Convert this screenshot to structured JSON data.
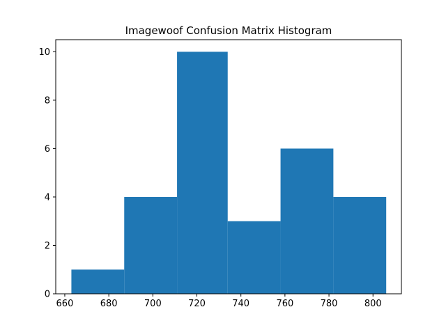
{
  "chart_data": {
    "type": "bar",
    "title": "Imagewoof Confusion Matrix Histogram",
    "xlabel": "",
    "ylabel": "",
    "bins": [
      {
        "x0": 663.0,
        "x1": 687.0,
        "count": 1
      },
      {
        "x0": 687.0,
        "x1": 711.0,
        "count": 4
      },
      {
        "x0": 711.0,
        "x1": 734.0,
        "count": 10
      },
      {
        "x0": 734.0,
        "x1": 758.0,
        "count": 3
      },
      {
        "x0": 758.0,
        "x1": 782.0,
        "count": 6
      },
      {
        "x0": 782.0,
        "x1": 806.0,
        "count": 4
      }
    ],
    "xlim": [
      655.9,
      812.9
    ],
    "ylim": [
      0,
      10.5
    ],
    "xticks": [
      660,
      680,
      700,
      720,
      740,
      760,
      780,
      800
    ],
    "yticks": [
      0,
      2,
      4,
      6,
      8,
      10
    ],
    "bar_color": "#1f77b4",
    "grid": false,
    "legend": "none"
  }
}
